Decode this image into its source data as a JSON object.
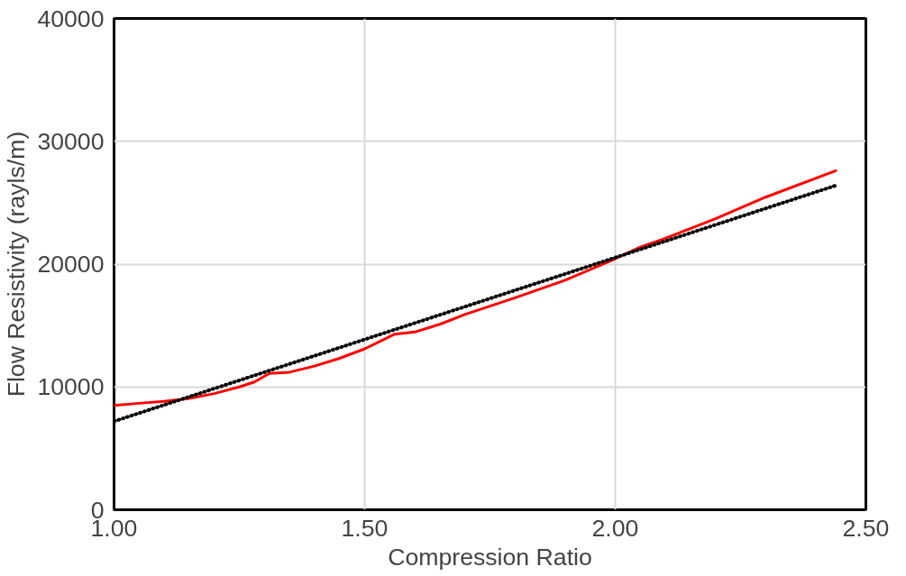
{
  "chart_data": {
    "type": "line",
    "xlabel": "Compression Ratio",
    "ylabel": "Flow Resistivity (rayls/m)",
    "xlim": [
      1.0,
      2.5
    ],
    "xticks": [
      {
        "value": 1.0,
        "label": "1.00"
      },
      {
        "value": 1.5,
        "label": "1.50"
      },
      {
        "value": 2.0,
        "label": "2.00"
      },
      {
        "value": 2.5,
        "label": "2.50"
      }
    ],
    "ylim": [
      0,
      40000
    ],
    "yticks": [
      0,
      10000,
      20000,
      30000,
      40000
    ],
    "grid": true,
    "series": [
      {
        "color": "#ff0000",
        "line_style": "solid",
        "x": [
          1.0,
          1.05,
          1.1,
          1.15,
          1.2,
          1.25,
          1.28,
          1.31,
          1.35,
          1.4,
          1.45,
          1.5,
          1.53,
          1.56,
          1.6,
          1.65,
          1.7,
          1.8,
          1.9,
          2.0,
          2.05,
          2.1,
          2.2,
          2.3,
          2.44
        ],
        "values": [
          8500,
          8670,
          8830,
          9070,
          9460,
          10000,
          10400,
          11100,
          11200,
          11700,
          12330,
          13100,
          13700,
          14300,
          14470,
          15100,
          15900,
          17260,
          18690,
          20440,
          21390,
          22100,
          23700,
          25450,
          27600
        ]
      },
      {
        "color": "#000000",
        "line_style": "dotted",
        "x": [
          1.0,
          2.44
        ],
        "values": [
          7200,
          26400
        ]
      }
    ]
  }
}
